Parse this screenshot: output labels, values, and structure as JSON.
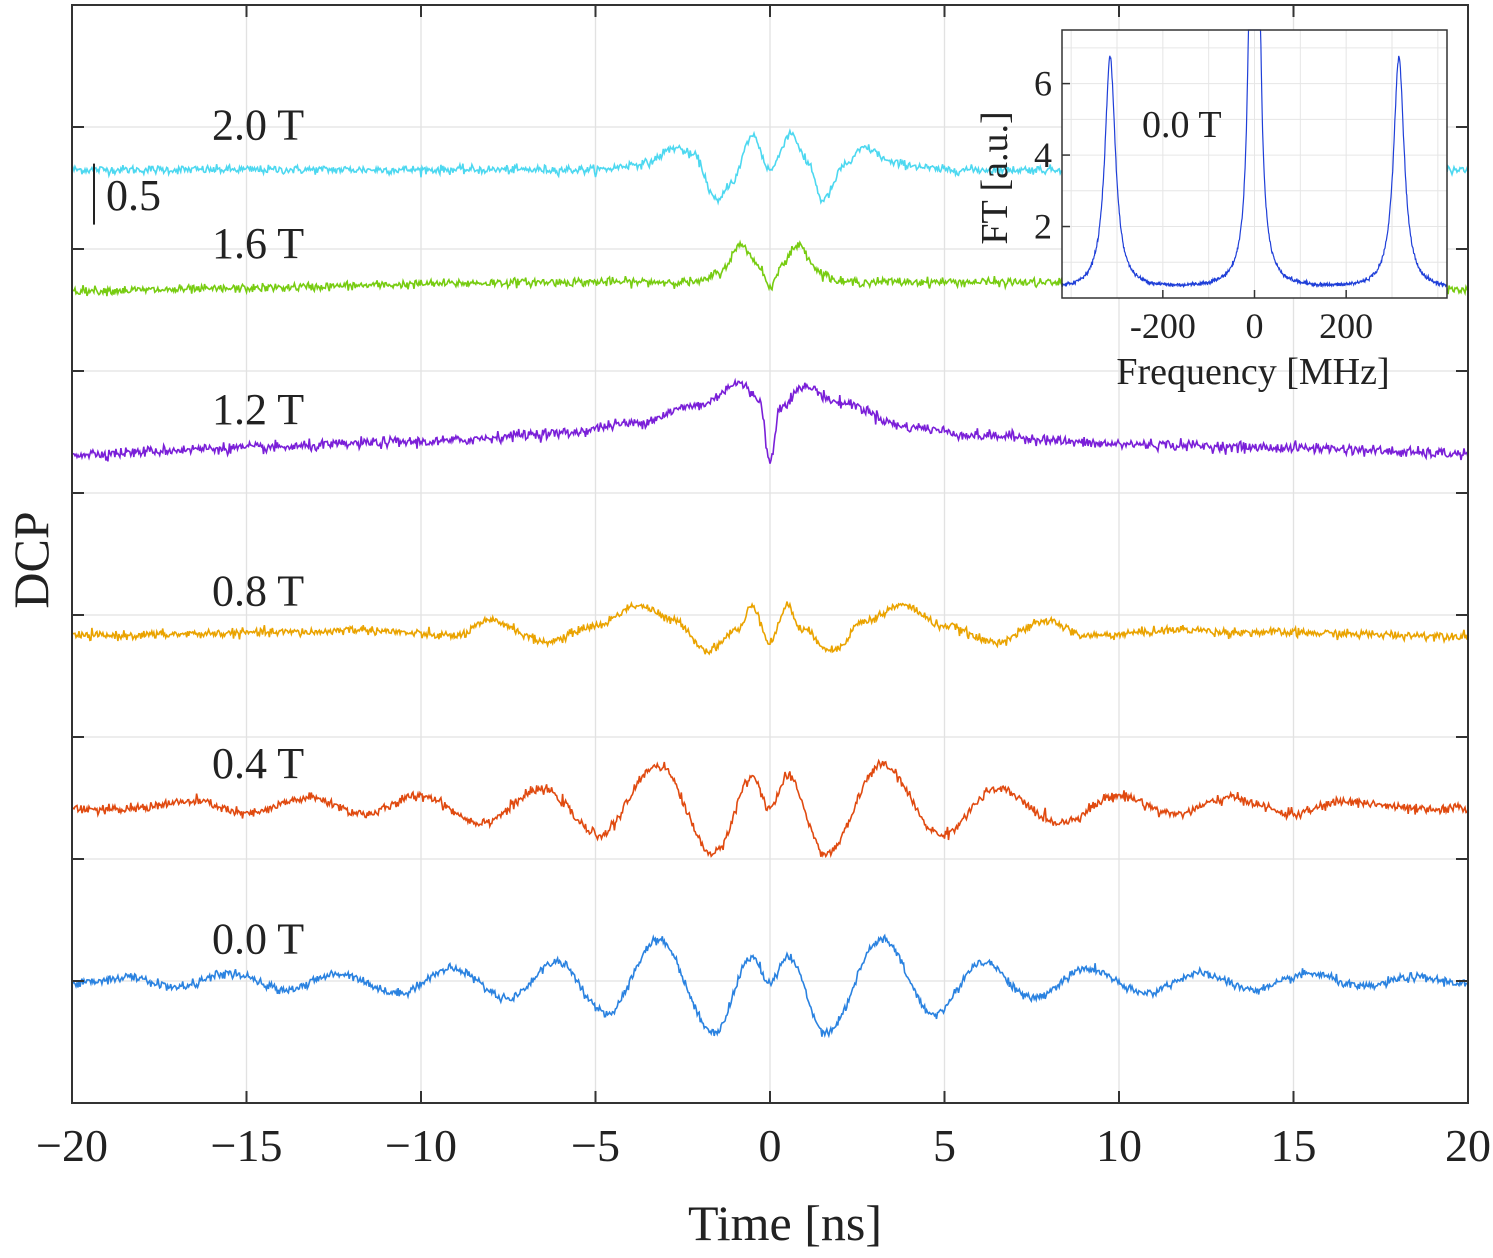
{
  "chart_data": [
    {
      "type": "line",
      "title": "",
      "xlabel": "Time [ns]",
      "ylabel": "DCP",
      "xlim": [
        -20,
        20
      ],
      "xticks": [
        "−20",
        "−15",
        "−10",
        "−5",
        "0",
        "5",
        "10",
        "15",
        "20"
      ],
      "xtick_values": [
        -20,
        -15,
        -10,
        -5,
        0,
        5,
        10,
        15,
        20
      ],
      "grid": true,
      "scale_bar": {
        "label": "0.5",
        "value": 0.5
      },
      "series": [
        {
          "name": "2.0 T",
          "label": "2.0 T",
          "color": "#4dd8f0",
          "offset": 7.65,
          "noise": 0.018,
          "description": "two central doublet oscillations, dips at about ±1.5 ns, flat elsewhere",
          "points": [
            [
              -20,
              0
            ],
            [
              -5,
              0
            ],
            [
              -3.6,
              0.05
            ],
            [
              -2.7,
              0.18
            ],
            [
              -2.2,
              0.12
            ],
            [
              -1.5,
              -0.26
            ],
            [
              -1.1,
              -0.1
            ],
            [
              -0.5,
              0.28
            ],
            [
              0,
              0
            ],
            [
              0.6,
              0.3
            ],
            [
              1.1,
              0.05
            ],
            [
              1.5,
              -0.25
            ],
            [
              2.2,
              0.05
            ],
            [
              2.7,
              0.18
            ],
            [
              3.6,
              0.05
            ],
            [
              5,
              0
            ],
            [
              20,
              0
            ]
          ]
        },
        {
          "name": "1.6 T",
          "label": "1.6 T",
          "color": "#77cc11",
          "offset": 6.68,
          "noise": 0.018,
          "description": "single doublet around t = 0",
          "points": [
            [
              -20,
              -0.02
            ],
            [
              -5,
              0.05
            ],
            [
              -2,
              0.05
            ],
            [
              -1.5,
              0.12
            ],
            [
              -0.8,
              0.35
            ],
            [
              -0.3,
              0.18
            ],
            [
              0,
              0
            ],
            [
              0.3,
              0.18
            ],
            [
              0.8,
              0.35
            ],
            [
              1.5,
              0.12
            ],
            [
              2,
              0.05
            ],
            [
              5,
              0.05
            ],
            [
              20,
              -0.02
            ]
          ]
        },
        {
          "name": "1.2 T",
          "label": "1.2 T",
          "color": "#7a1fd8",
          "offset": 5.32,
          "noise": 0.022,
          "description": "broad Gaussian bump with narrow dip at t = 0",
          "points": [
            [
              -20,
              0
            ],
            [
              -15,
              0.05
            ],
            [
              -10,
              0.1
            ],
            [
              -6,
              0.17
            ],
            [
              -4,
              0.25
            ],
            [
              -2,
              0.4
            ],
            [
              -0.9,
              0.58
            ],
            [
              -0.3,
              0.45
            ],
            [
              0,
              -0.07
            ],
            [
              0.3,
              0.4
            ],
            [
              1,
              0.55
            ],
            [
              2,
              0.42
            ],
            [
              4,
              0.22
            ],
            [
              6,
              0.15
            ],
            [
              10,
              0.08
            ],
            [
              15,
              0.05
            ],
            [
              20,
              0
            ]
          ]
        },
        {
          "name": "0.8 T",
          "label": "0.8 T",
          "color": "#eaa300",
          "offset": 3.83,
          "noise": 0.018,
          "points": [
            [
              -20,
              0
            ],
            [
              -13,
              0.03
            ],
            [
              -12,
              0.05
            ],
            [
              -9,
              0.0
            ],
            [
              -8,
              0.12
            ],
            [
              -6.4,
              -0.05
            ],
            [
              -5,
              0.08
            ],
            [
              -3.8,
              0.25
            ],
            [
              -2.7,
              0.12
            ],
            [
              -1.8,
              -0.12
            ],
            [
              -0.9,
              0.05
            ],
            [
              -0.5,
              0.25
            ],
            [
              0,
              -0.05
            ],
            [
              0.5,
              0.25
            ],
            [
              0.9,
              0.05
            ],
            [
              1.8,
              -0.12
            ],
            [
              2.7,
              0.12
            ],
            [
              3.8,
              0.25
            ],
            [
              5,
              0.08
            ],
            [
              6.4,
              -0.05
            ],
            [
              8,
              0.12
            ],
            [
              9,
              0.0
            ],
            [
              12,
              0.05
            ],
            [
              13,
              0.03
            ],
            [
              20,
              0
            ]
          ]
        },
        {
          "name": "0.4 T",
          "label": "0.4 T",
          "color": "#e04a10",
          "offset": 2.42,
          "noise": 0.02,
          "points": [
            [
              -20,
              0
            ],
            [
              -19,
              -0.02
            ],
            [
              -16.4,
              0.05
            ],
            [
              -15,
              -0.05
            ],
            [
              -13.2,
              0.08
            ],
            [
              -11.6,
              -0.05
            ],
            [
              -10,
              0.1
            ],
            [
              -8.3,
              -0.12
            ],
            [
              -6.5,
              0.15
            ],
            [
              -4.9,
              -0.22
            ],
            [
              -3.2,
              0.35
            ],
            [
              -1.6,
              -0.38
            ],
            [
              -0.5,
              0.25
            ],
            [
              0,
              0.0
            ],
            [
              0.5,
              0.25
            ],
            [
              1.6,
              -0.38
            ],
            [
              3.2,
              0.35
            ],
            [
              4.9,
              -0.22
            ],
            [
              6.5,
              0.15
            ],
            [
              8.3,
              -0.12
            ],
            [
              10,
              0.1
            ],
            [
              11.6,
              -0.05
            ],
            [
              13.2,
              0.08
            ],
            [
              15,
              -0.05
            ],
            [
              16.4,
              0.05
            ],
            [
              19,
              -0.02
            ],
            [
              20,
              0
            ]
          ]
        },
        {
          "name": "0.0 T",
          "label": "0.0 T",
          "color": "#2a82e0",
          "offset": 0.98,
          "noise": 0.018,
          "points": [
            [
              -20,
              0
            ],
            [
              -18.4,
              0.05
            ],
            [
              -17,
              -0.03
            ],
            [
              -15.5,
              0.08
            ],
            [
              -13.9,
              -0.05
            ],
            [
              -12.3,
              0.08
            ],
            [
              -10.7,
              -0.08
            ],
            [
              -9.1,
              0.12
            ],
            [
              -7.5,
              -0.12
            ],
            [
              -6.1,
              0.18
            ],
            [
              -4.7,
              -0.25
            ],
            [
              -3.2,
              0.36
            ],
            [
              -1.6,
              -0.4
            ],
            [
              -0.5,
              0.22
            ],
            [
              0,
              0.0
            ],
            [
              0.5,
              0.22
            ],
            [
              1.6,
              -0.4
            ],
            [
              3.2,
              0.36
            ],
            [
              4.7,
              -0.25
            ],
            [
              6.1,
              0.18
            ],
            [
              7.5,
              -0.12
            ],
            [
              9.1,
              0.12
            ],
            [
              10.7,
              -0.08
            ],
            [
              12.3,
              0.08
            ],
            [
              13.9,
              -0.05
            ],
            [
              15.5,
              0.08
            ],
            [
              17,
              -0.03
            ],
            [
              18.4,
              0.05
            ],
            [
              20,
              0
            ]
          ]
        }
      ]
    },
    {
      "type": "line",
      "title": "",
      "xlabel": "Frequency [MHz]",
      "ylabel": "FT [a.u.]",
      "xlim": [
        -420,
        420
      ],
      "ylim": [
        0,
        7.5
      ],
      "xticks": [
        "-200",
        "0",
        "200"
      ],
      "xtick_values": [
        -200,
        0,
        200
      ],
      "yticks": [
        "2",
        "4",
        "6"
      ],
      "ytick_values": [
        2,
        4,
        6
      ],
      "grid": true,
      "annotation": "0.0 T",
      "series": [
        {
          "name": "FT 0.0 T",
          "color": "#1f3fd8",
          "peaks": [
            {
              "center": -315,
              "height": 6.5,
              "width": 14
            },
            {
              "center": 315,
              "height": 6.5,
              "width": 14
            },
            {
              "center": 0,
              "height": 60,
              "width": 5
            }
          ],
          "baseline": 0.2
        }
      ]
    }
  ]
}
